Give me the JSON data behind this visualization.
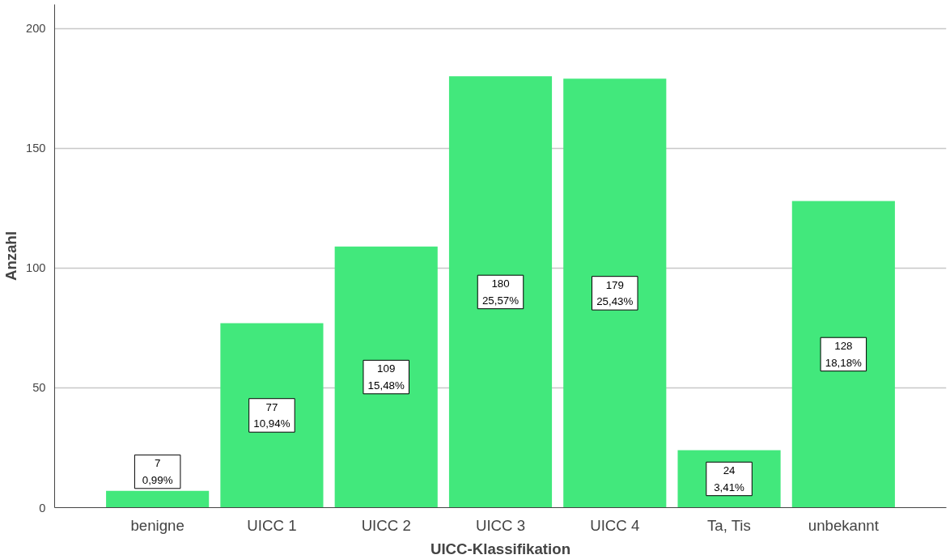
{
  "chart_data": {
    "type": "bar",
    "xlabel": "UICC-Klassifikation",
    "ylabel": "Anzahl",
    "categories": [
      "benigne",
      "UICC 1",
      "UICC 2",
      "UICC 3",
      "UICC 4",
      "Ta, Tis",
      "unbekannt"
    ],
    "values": [
      7,
      77,
      109,
      180,
      179,
      24,
      128
    ],
    "value_labels": [
      "7\n0,99%",
      "77\n10,94%",
      "109\n15,48%",
      "180\n25,57%",
      "179\n25,43%",
      "24\n3,41%",
      "128\n18,18%"
    ],
    "color": "#42e87c",
    "ylim": [
      0,
      210
    ],
    "yticks": [
      0,
      50,
      100,
      150,
      200
    ],
    "grid": "y"
  }
}
